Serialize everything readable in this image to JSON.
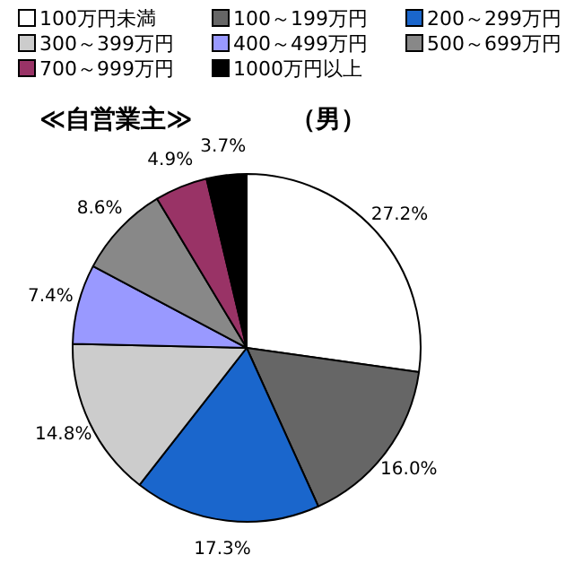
{
  "chart_data": {
    "type": "pie",
    "title": "≪自営業主≫",
    "subtitle": "（男）",
    "categories": [
      "100万円未満",
      "100～199万円",
      "200～299万円",
      "300～399万円",
      "400～499万円",
      "500～699万円",
      "700～999万円",
      "1000万円以上"
    ],
    "values": [
      27.2,
      16.0,
      17.3,
      14.8,
      7.4,
      8.6,
      4.9,
      3.7
    ],
    "value_labels": [
      "27.2%",
      "16.0%",
      "17.3%",
      "14.8%",
      "7.4%",
      "8.6%",
      "4.9%",
      "3.7%"
    ],
    "colors": [
      "#ffffff",
      "#666666",
      "#1a66cc",
      "#cccccc",
      "#9999ff",
      "#888888",
      "#993366",
      "#000000"
    ],
    "legend": "top"
  }
}
